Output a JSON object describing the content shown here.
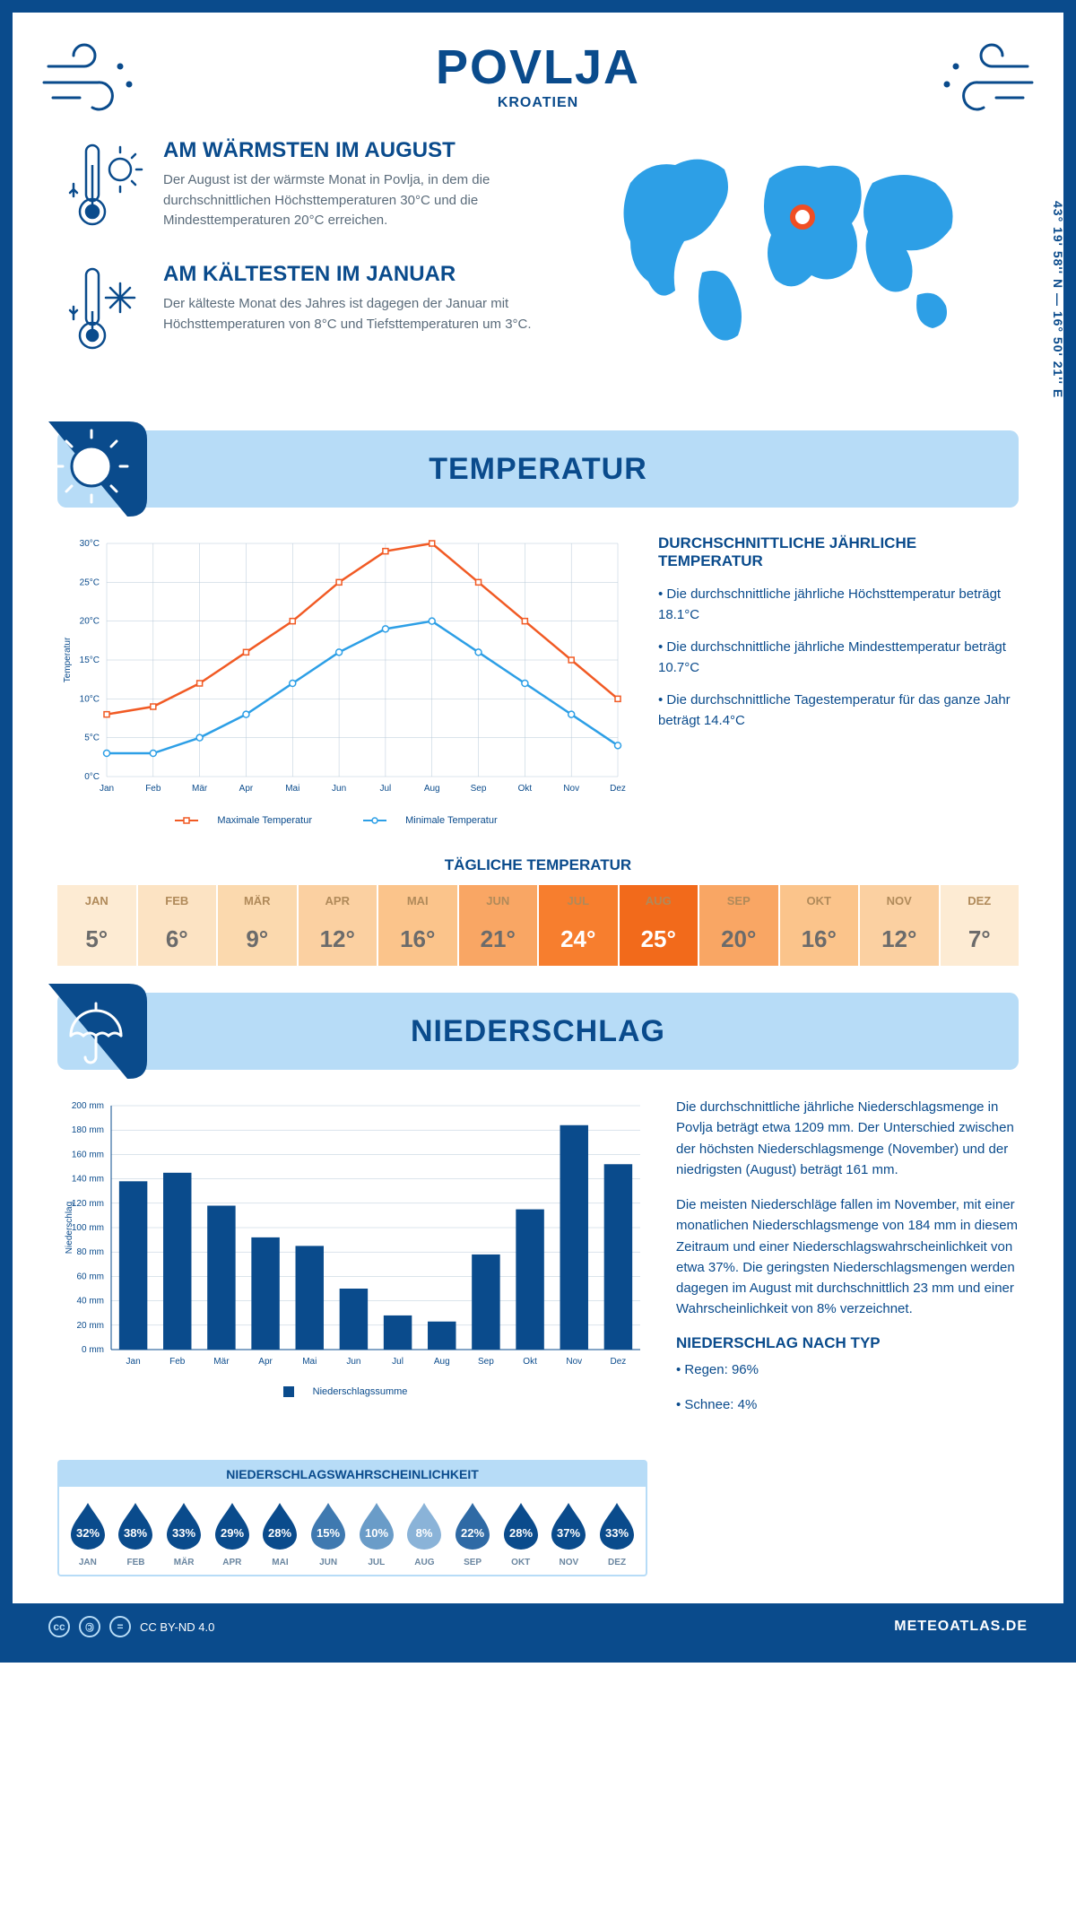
{
  "header": {
    "title": "POVLJA",
    "subtitle": "KROATIEN",
    "coords": "43° 19' 58'' N — 16° 50' 21'' E"
  },
  "intro": {
    "warm": {
      "title": "AM WÄRMSTEN IM AUGUST",
      "text": "Der August ist der wärmste Monat in Povlja, in dem die durchschnittlichen Höchsttemperaturen 30°C und die Mindesttemperaturen 20°C erreichen."
    },
    "cold": {
      "title": "AM KÄLTESTEN IM JANUAR",
      "text": "Der kälteste Monat des Jahres ist dagegen der Januar mit Höchsttemperaturen von 8°C und Tiefsttemperaturen um 3°C."
    }
  },
  "sections": {
    "temp": "TEMPERATUR",
    "precip": "NIEDERSCHLAG"
  },
  "temp_chart": {
    "type": "line",
    "months": [
      "Jan",
      "Feb",
      "Mär",
      "Apr",
      "Mai",
      "Jun",
      "Jul",
      "Aug",
      "Sep",
      "Okt",
      "Nov",
      "Dez"
    ],
    "max_values": [
      8,
      9,
      12,
      16,
      20,
      25,
      29,
      30,
      25,
      20,
      15,
      10
    ],
    "min_values": [
      3,
      3,
      5,
      8,
      12,
      16,
      19,
      20,
      16,
      12,
      8,
      4
    ],
    "max_color": "#f15a24",
    "min_color": "#2d9fe6",
    "ylim": [
      0,
      30
    ],
    "ytick_step": 5,
    "grid_color": "#b7c8d8",
    "legend": {
      "max": "Maximale Temperatur",
      "min": "Minimale Temperatur"
    },
    "ylabel": "Temperatur"
  },
  "temp_info": {
    "heading": "DURCHSCHNITTLICHE JÄHRLICHE TEMPERATUR",
    "p1": "• Die durchschnittliche jährliche Höchsttemperatur beträgt 18.1°C",
    "p2": "• Die durchschnittliche jährliche Mindesttemperatur beträgt 10.7°C",
    "p3": "• Die durchschnittliche Tagestemperatur für das ganze Jahr beträgt 14.4°C"
  },
  "daily": {
    "title": "TÄGLICHE TEMPERATUR",
    "months": [
      "JAN",
      "FEB",
      "MÄR",
      "APR",
      "MAI",
      "JUN",
      "JUL",
      "AUG",
      "SEP",
      "OKT",
      "NOV",
      "DEZ"
    ],
    "values": [
      "5°",
      "6°",
      "9°",
      "12°",
      "16°",
      "21°",
      "24°",
      "25°",
      "20°",
      "16°",
      "12°",
      "7°"
    ],
    "bg_colors": [
      "#fdebd3",
      "#fce3c3",
      "#fbd9ae",
      "#fbd0a1",
      "#fbc48b",
      "#f9a664",
      "#f77e2e",
      "#f26a1b",
      "#f9a664",
      "#fbc48b",
      "#fbd0a1",
      "#fdebd3"
    ],
    "text_colors": [
      "#6b6b6b",
      "#6b6b6b",
      "#6b6b6b",
      "#6b6b6b",
      "#6b6b6b",
      "#6b6b6b",
      "#ffffff",
      "#ffffff",
      "#6b6b6b",
      "#6b6b6b",
      "#6b6b6b",
      "#6b6b6b"
    ]
  },
  "precip_chart": {
    "type": "bar",
    "months": [
      "Jan",
      "Feb",
      "Mär",
      "Apr",
      "Mai",
      "Jun",
      "Jul",
      "Aug",
      "Sep",
      "Okt",
      "Nov",
      "Dez"
    ],
    "values": [
      138,
      145,
      118,
      92,
      85,
      50,
      28,
      23,
      78,
      115,
      184,
      152
    ],
    "bar_color": "#0a4b8c",
    "ylim": [
      0,
      200
    ],
    "ytick_step": 20,
    "grid_color": "#b7c8d8",
    "legend": "Niederschlagssumme",
    "ylabel": "Niederschlag"
  },
  "precip_info": {
    "p1": "Die durchschnittliche jährliche Niederschlagsmenge in Povlja beträgt etwa 1209 mm. Der Unterschied zwischen der höchsten Niederschlagsmenge (November) und der niedrigsten (August) beträgt 161 mm.",
    "p2": "Die meisten Niederschläge fallen im November, mit einer monatlichen Niederschlagsmenge von 184 mm in diesem Zeitraum und einer Niederschlagswahrscheinlichkeit von etwa 37%. Die geringsten Niederschlagsmengen werden dagegen im August mit durchschnittlich 23 mm und einer Wahrscheinlichkeit von 8% verzeichnet.",
    "h": "NIEDERSCHLAG NACH TYP",
    "t1": "• Regen: 96%",
    "t2": "• Schnee: 4%"
  },
  "prob": {
    "title": "NIEDERSCHLAGSWAHRSCHEINLICHKEIT",
    "months": [
      "JAN",
      "FEB",
      "MÄR",
      "APR",
      "MAI",
      "JUN",
      "JUL",
      "AUG",
      "SEP",
      "OKT",
      "NOV",
      "DEZ"
    ],
    "values": [
      "32%",
      "38%",
      "33%",
      "29%",
      "28%",
      "15%",
      "10%",
      "8%",
      "22%",
      "28%",
      "37%",
      "33%"
    ],
    "fill_colors": [
      "#0a4b8c",
      "#0a4b8c",
      "#0a4b8c",
      "#0a4b8c",
      "#0a4b8c",
      "#3f79b0",
      "#6a9cc8",
      "#8ab3d8",
      "#2f6aa5",
      "#0a4b8c",
      "#0a4b8c",
      "#0a4b8c"
    ]
  },
  "footer": {
    "license": "CC BY-ND 4.0",
    "site": "METEOATLAS.DE"
  },
  "colors": {
    "brand": "#0a4b8c",
    "light": "#b7dcf7",
    "map": "#2d9fe6",
    "marker": "#f04e23"
  }
}
